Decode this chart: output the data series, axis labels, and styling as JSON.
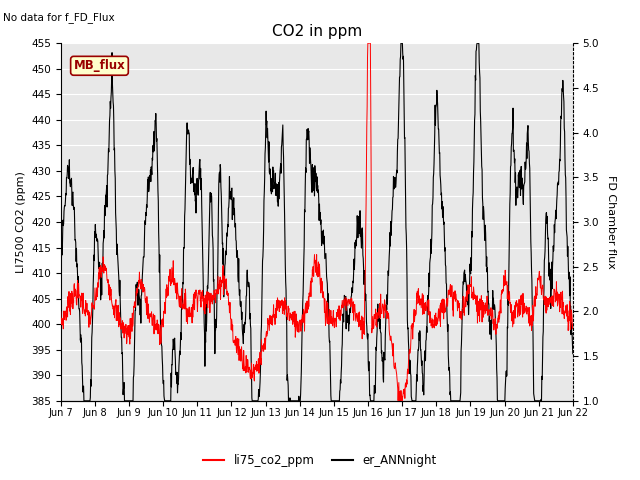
{
  "title": "CO2 in ppm",
  "topleft_text": "No data for f_FD_Flux",
  "ylabel_left": "LI7500 CO2 (ppm)",
  "ylabel_right": "FD Chamber flux",
  "ylim_left": [
    385,
    455
  ],
  "ylim_right": [
    1.0,
    5.0
  ],
  "yticks_left": [
    385,
    390,
    395,
    400,
    405,
    410,
    415,
    420,
    425,
    430,
    435,
    440,
    445,
    450,
    455
  ],
  "yticks_right": [
    1.0,
    1.5,
    2.0,
    2.5,
    3.0,
    3.5,
    4.0,
    4.5,
    5.0
  ],
  "xtick_labels": [
    "Jun 7",
    "Jun 8",
    "Jun 9",
    "Jun 10",
    "Jun 11",
    "Jun 12",
    "Jun 13",
    "Jun 14",
    "Jun 15",
    "Jun 16",
    "Jun 17",
    "Jun 18",
    "Jun 19",
    "Jun 20",
    "Jun 21",
    "Jun 22"
  ],
  "legend_labels": [
    "li75_co2_ppm",
    "er_ANNnight"
  ],
  "legend_colors": [
    "red",
    "black"
  ],
  "mb_flux_box_color": "#ffffcc",
  "mb_flux_text_color": "#990000",
  "mb_flux_border_color": "#990000",
  "line1_color": "red",
  "line2_color": "black",
  "plot_bg_color": "#e8e8e8",
  "n_points": 1440
}
